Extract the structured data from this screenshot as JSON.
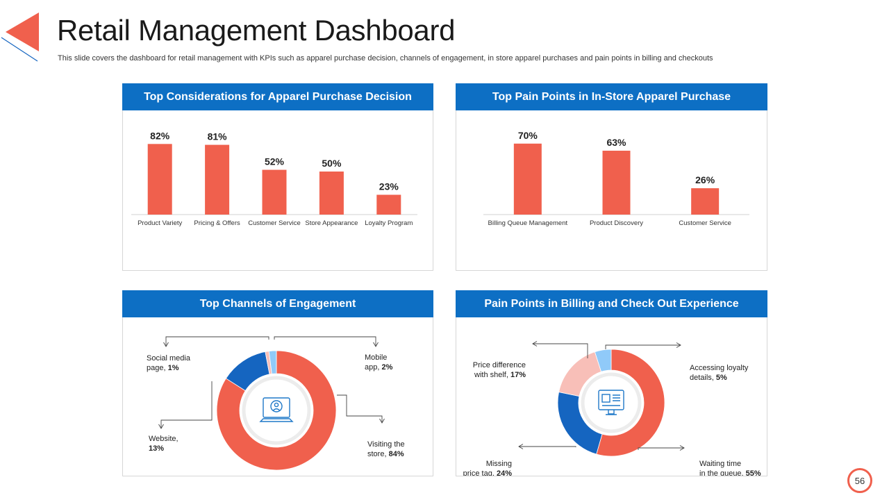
{
  "slide": {
    "title": "Retail Management Dashboard",
    "subtitle": "This slide covers the dashboard for retail management with KPIs such as apparel purchase decision, channels of engagement, in store apparel purchases and pain points in billing and checkouts",
    "page_number": "56"
  },
  "colors": {
    "accent": "#f0604d",
    "header": "#0d6fc4",
    "blue": "#1565c0",
    "light_blue": "#90caf9",
    "pink": "#f8bfb8"
  },
  "panels": [
    {
      "title": "Top Considerations for Apparel Purchase Decision",
      "icon": ""
    },
    {
      "title": "Top Pain Points in In-Store Apparel Purchase",
      "icon": ""
    },
    {
      "title": "Top Channels of Engagement",
      "icon": "laptop-user-icon"
    },
    {
      "title": "Pain Points in Billing and Check Out Experience",
      "icon": "monitor-checkout-icon"
    }
  ],
  "chart_data": [
    {
      "type": "bar",
      "title": "Top Considerations for Apparel Purchase Decision",
      "categories": [
        "Product Variety",
        "Pricing & Offers",
        "Customer Service",
        "Store Appearance",
        "Loyalty Program"
      ],
      "values": [
        82,
        81,
        52,
        50,
        23
      ],
      "labels": [
        "82%",
        "81%",
        "52%",
        "50%",
        "23%"
      ],
      "ylim": [
        0,
        100
      ],
      "color": "#f0604d"
    },
    {
      "type": "bar",
      "title": "Top Pain Points in In-Store Apparel Purchase",
      "categories": [
        "Billing Queue Management",
        "Product Discovery",
        "Customer Service"
      ],
      "values": [
        70,
        63,
        26
      ],
      "labels": [
        "70%",
        "63%",
        "26%"
      ],
      "ylim": [
        0,
        100
      ],
      "color": "#f0604d"
    },
    {
      "type": "pie",
      "title": "Top Channels of Engagement",
      "slices": [
        {
          "name": "Visiting the store",
          "value": 84,
          "label": "84%",
          "line1": "Visiting the",
          "line2": "store,",
          "color": "#f0604d"
        },
        {
          "name": "Website",
          "value": 13,
          "label": "13%",
          "line1": "Website,",
          "line2": "",
          "color": "#1565c0"
        },
        {
          "name": "Social media page",
          "value": 1,
          "label": "1%",
          "line1": "Social media",
          "line2": "page,",
          "color": "#f8bfb8"
        },
        {
          "name": "Mobile app",
          "value": 2,
          "label": "2%",
          "line1": "Mobile",
          "line2": "app,",
          "color": "#90caf9"
        }
      ]
    },
    {
      "type": "pie",
      "title": "Pain Points in Billing and Check Out Experience",
      "slices": [
        {
          "name": "Waiting time in the queue",
          "value": 55,
          "label": "55%",
          "line1": "Waiting time",
          "line2": "in the queue,",
          "color": "#f0604d"
        },
        {
          "name": "Missing price tag",
          "value": 24,
          "label": "24%",
          "line1": "Missing",
          "line2": "price tag,",
          "color": "#1565c0"
        },
        {
          "name": "Price difference with shelf",
          "value": 17,
          "label": "17%",
          "line1": "Price difference",
          "line2": "with shelf,",
          "color": "#f8bfb8"
        },
        {
          "name": "Accessing loyalty details",
          "value": 5,
          "label": "5%",
          "line1": "Accessing loyalty",
          "line2": "details,",
          "color": "#90caf9"
        }
      ]
    }
  ]
}
